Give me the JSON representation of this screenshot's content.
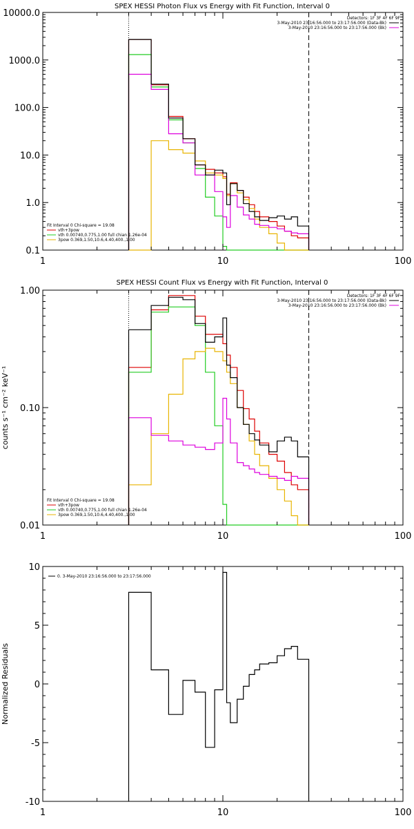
{
  "colors": {
    "black": "#000000",
    "red": "#dd0000",
    "green": "#22cc22",
    "magenta": "#dd00dd",
    "gold": "#e8b400"
  },
  "chart_data": [
    {
      "type": "line",
      "title": "SPEX HESSI Photon Flux vs Energy with Fit Function, Interval 0",
      "xscale": "log",
      "yscale": "log",
      "xlim": [
        1,
        100
      ],
      "ylim": [
        0.1,
        10000
      ],
      "x_tick_labels": [
        "1",
        "10",
        "100"
      ],
      "y_tick_labels": [
        "0.1",
        "1.0",
        "10.0",
        "100.0",
        "1000.0",
        "10000.0"
      ],
      "y_tick_values": [
        0.1,
        1,
        10,
        100,
        1000,
        10000
      ],
      "vlines": [
        {
          "x": 3,
          "style": "dotted"
        },
        {
          "x": 30,
          "style": "dashed"
        }
      ],
      "legend_top_right": {
        "lines": [
          "Detectors: 1F 3F 4F 6F 9F",
          "3-May-2010 23:16:56.000 to 23:17:56.000 (Data-Bk)",
          "3-May-2010 23:16:56.000 to 23:17:56.000 (Bk)"
        ],
        "colors": [
          "#000000",
          "#000000",
          "#dd00dd"
        ]
      },
      "legend_bottom_left": {
        "lines": [
          "Fit Interval 0   Chi-square = 19.08",
          "vth+3pow",
          "vth 0.00740,0.775,1.00   full chian 1.26e-04",
          "3pow 0.369,1.50,10.6,4.40,400.,1.00"
        ],
        "colors": [
          "#000000",
          "#dd0000",
          "#22cc22",
          "#e8b400"
        ]
      },
      "bin_edges": [
        3,
        3.5,
        4,
        4.5,
        5,
        5.5,
        6,
        6.5,
        7,
        7.5,
        8,
        8.5,
        9,
        9.5,
        10,
        10.5,
        11,
        12,
        13,
        14,
        15,
        16,
        18,
        20,
        22,
        24,
        26,
        28,
        30
      ],
      "series": [
        {
          "name": "vth+3pow",
          "color": "#dd0000",
          "values": [
            2700,
            2700,
            300,
            300,
            65,
            65,
            22,
            22,
            6.2,
            6.2,
            5,
            5,
            4.2,
            4.2,
            3.5,
            1.5,
            2.6,
            1.8,
            1.3,
            0.9,
            0.65,
            0.5,
            0.4,
            0.32,
            0.25,
            0.2,
            0.18,
            0.18
          ]
        },
        {
          "name": "vth",
          "color": "#22cc22",
          "values": [
            1300,
            1300,
            270,
            270,
            55,
            55,
            18,
            18,
            5.2,
            5.2,
            1.3,
            1.3,
            0.52,
            0.52,
            0.12,
            0.1,
            0.1,
            0.1,
            0.1,
            0.1,
            0.1,
            0.1,
            0.1,
            0.1,
            0.1,
            0.1,
            0.1,
            0.1
          ]
        },
        {
          "name": "3pow",
          "color": "#e8b400",
          "values": [
            0.1,
            0.1,
            20,
            20,
            13,
            13,
            11,
            11,
            7.5,
            7.5,
            4.2,
            4.2,
            3.8,
            3.8,
            3.2,
            1.4,
            2.5,
            1.6,
            1.15,
            0.75,
            0.45,
            0.3,
            0.22,
            0.14,
            0.1,
            0.1,
            0.1,
            0.1
          ]
        },
        {
          "name": "Bk",
          "color": "#dd00dd",
          "values": [
            500,
            500,
            240,
            240,
            28,
            28,
            18,
            18,
            3.8,
            3.8,
            3.8,
            3.8,
            1.7,
            1.7,
            0.5,
            0.3,
            1.4,
            0.8,
            0.55,
            0.45,
            0.35,
            0.33,
            0.3,
            0.28,
            0.25,
            0.23,
            0.22,
            0.22
          ]
        },
        {
          "name": "Data-Bk",
          "color": "#000000",
          "values": [
            2700,
            2700,
            310,
            310,
            60,
            60,
            22,
            22,
            6.2,
            6.2,
            3.8,
            3.8,
            4.8,
            4.8,
            4.2,
            0.9,
            2.5,
            1.8,
            0.95,
            0.65,
            0.5,
            0.42,
            0.48,
            0.52,
            0.45,
            0.5,
            0.32,
            0.32
          ]
        }
      ]
    },
    {
      "type": "line",
      "title": "SPEX HESSI Count Flux vs Energy with Fit Function, Interval 0",
      "ylabel": "counts s⁻¹ cm⁻² keV⁻¹",
      "xscale": "log",
      "yscale": "log",
      "xlim": [
        1,
        100
      ],
      "ylim": [
        0.01,
        1
      ],
      "x_tick_labels": [
        "1",
        "10",
        "100"
      ],
      "y_tick_labels": [
        "0.01",
        "0.10",
        "1.00"
      ],
      "y_tick_values": [
        0.01,
        0.1,
        1
      ],
      "vlines": [
        {
          "x": 3,
          "style": "dotted"
        },
        {
          "x": 30,
          "style": "dashed"
        }
      ],
      "legend_top_right": {
        "lines": [
          "Detectors: 1F 3F 4F 6F 9F",
          "3-May-2010 23:16:56.000 to 23:17:56.000 (Data-Bk)",
          "3-May-2010 23:16:56.000 to 23:17:56.000 (Bk)"
        ],
        "colors": [
          "#000000",
          "#000000",
          "#dd00dd"
        ]
      },
      "legend_bottom_left": {
        "lines": [
          "Fit Interval 0   Chi-square = 19.08",
          "vth+3pow",
          "vth 0.00740,0.775,1.00   full chian 1.26e-04",
          "3pow 0.369,1.50,10.6,4.40,400.,1.00"
        ],
        "colors": [
          "#000000",
          "#dd0000",
          "#22cc22",
          "#e8b400"
        ]
      },
      "bin_edges": [
        3,
        3.5,
        4,
        4.5,
        5,
        5.5,
        6,
        6.5,
        7,
        7.5,
        8,
        8.5,
        9,
        9.5,
        10,
        10.5,
        11,
        12,
        13,
        14,
        15,
        16,
        18,
        20,
        22,
        24,
        26,
        28,
        30
      ],
      "series": [
        {
          "name": "vth+3pow",
          "color": "#dd0000",
          "values": [
            0.22,
            0.22,
            0.68,
            0.68,
            0.9,
            0.9,
            0.9,
            0.9,
            0.6,
            0.6,
            0.42,
            0.42,
            0.42,
            0.42,
            0.35,
            0.28,
            0.22,
            0.14,
            0.098,
            0.08,
            0.063,
            0.05,
            0.04,
            0.035,
            0.028,
            0.022,
            0.02,
            0.02
          ]
        },
        {
          "name": "vth",
          "color": "#22cc22",
          "values": [
            0.2,
            0.2,
            0.65,
            0.65,
            0.72,
            0.72,
            0.72,
            0.72,
            0.5,
            0.5,
            0.2,
            0.2,
            0.07,
            0.07,
            0.015,
            0.01,
            0.01,
            0.01,
            0.01,
            0.01,
            0.01,
            0.01,
            0.01,
            0.01,
            0.01,
            0.01,
            0.01,
            0.01
          ]
        },
        {
          "name": "3pow",
          "color": "#e8b400",
          "values": [
            0.022,
            0.022,
            0.06,
            0.06,
            0.13,
            0.13,
            0.26,
            0.26,
            0.3,
            0.3,
            0.32,
            0.32,
            0.3,
            0.3,
            0.25,
            0.2,
            0.16,
            0.1,
            0.072,
            0.052,
            0.04,
            0.032,
            0.025,
            0.02,
            0.016,
            0.012,
            0.01,
            0.01
          ]
        },
        {
          "name": "Bk",
          "color": "#dd00dd",
          "values": [
            0.082,
            0.082,
            0.058,
            0.058,
            0.052,
            0.052,
            0.048,
            0.048,
            0.046,
            0.046,
            0.044,
            0.044,
            0.05,
            0.05,
            0.12,
            0.08,
            0.05,
            0.034,
            0.032,
            0.03,
            0.028,
            0.027,
            0.026,
            0.025,
            0.024,
            0.026,
            0.025,
            0.025
          ]
        },
        {
          "name": "Data-Bk",
          "color": "#000000",
          "values": [
            0.46,
            0.46,
            0.74,
            0.74,
            0.87,
            0.87,
            0.83,
            0.83,
            0.52,
            0.52,
            0.36,
            0.36,
            0.4,
            0.4,
            0.58,
            0.23,
            0.18,
            0.1,
            0.072,
            0.06,
            0.053,
            0.048,
            0.042,
            0.052,
            0.056,
            0.052,
            0.038,
            0.038
          ]
        }
      ]
    },
    {
      "type": "line",
      "ylabel": "Normalized Residuals",
      "xscale": "log",
      "yscale": "linear",
      "xlim": [
        1,
        100
      ],
      "ylim": [
        -10,
        10
      ],
      "x_tick_labels": [
        "1",
        "10",
        "100"
      ],
      "y_tick_labels": [
        "-10",
        "-5",
        "0",
        "5",
        "10"
      ],
      "y_tick_values": [
        -10,
        -5,
        0,
        5,
        10
      ],
      "legend_top_left": {
        "lines": [
          "0. 3-May-2010 23:16:56.000 to 23:17:56.000"
        ],
        "colors": [
          "#000000"
        ]
      },
      "bin_edges": [
        3,
        3.5,
        4,
        4.5,
        5,
        5.5,
        6,
        6.5,
        7,
        7.5,
        8,
        8.5,
        9,
        9.5,
        10,
        10.5,
        11,
        12,
        13,
        14,
        15,
        16,
        18,
        20,
        22,
        24,
        26,
        28,
        30
      ],
      "series": [
        {
          "name": "0. 3-May-2010 23:16:56.000 to 23:17:56.000",
          "color": "#000000",
          "values": [
            7.8,
            7.8,
            1.2,
            1.2,
            -2.6,
            -2.6,
            0.3,
            0.3,
            -0.7,
            -0.7,
            -5.4,
            -5.4,
            -0.5,
            -0.5,
            9.5,
            -1.6,
            -3.3,
            -1.3,
            -0.2,
            0.8,
            1.2,
            1.7,
            1.8,
            2.4,
            3.0,
            3.2,
            2.1,
            2.1
          ]
        }
      ]
    }
  ]
}
